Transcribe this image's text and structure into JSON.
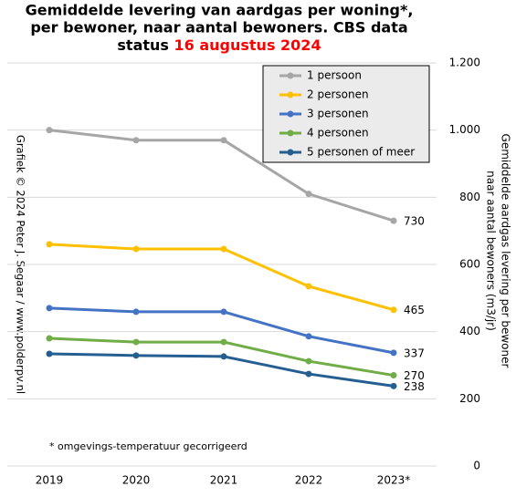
{
  "chart_data": {
    "type": "line",
    "title": [
      "Gemiddelde  levering van aardgas per woning*,",
      "per bewoner, naar aantal bewoners. CBS data",
      "status"
    ],
    "title_date": "16 augustus 2024",
    "y_label": [
      "Gemiddelde  aardgas levering per bewoner",
      "naar aantal bewoners (m3/jr)"
    ],
    "credit": "Grafiek  © 2024  Peter J. Segaar / www.polderpv.nl",
    "note": "* omgevings-temperatuur gecorrigeerd",
    "categories": [
      "2019",
      "2020",
      "2021",
      "2022",
      "2023*"
    ],
    "series": [
      {
        "name": "1 persoon",
        "color": "#a6a6a6",
        "values": [
          1000,
          970,
          970,
          810,
          730
        ]
      },
      {
        "name": "2 personen",
        "color": "#ffc000",
        "values": [
          660,
          646,
          646,
          535,
          465
        ]
      },
      {
        "name": "3 personen",
        "color": "#4472c4",
        "values": [
          470,
          459,
          459,
          386,
          337
        ]
      },
      {
        "name": "4 personen",
        "color": "#70ad47",
        "values": [
          380,
          369,
          369,
          312,
          270
        ]
      },
      {
        "name": "5 personen of meer",
        "color": "#255e91",
        "values": [
          334,
          329,
          326,
          274,
          238
        ]
      }
    ],
    "ylim": [
      0,
      1200
    ],
    "yticks": [
      0,
      200,
      400,
      600,
      800,
      {
        "value": 1000,
        "label": "1.000"
      },
      {
        "value": 1200,
        "label": "1.200"
      }
    ],
    "grid": true
  }
}
